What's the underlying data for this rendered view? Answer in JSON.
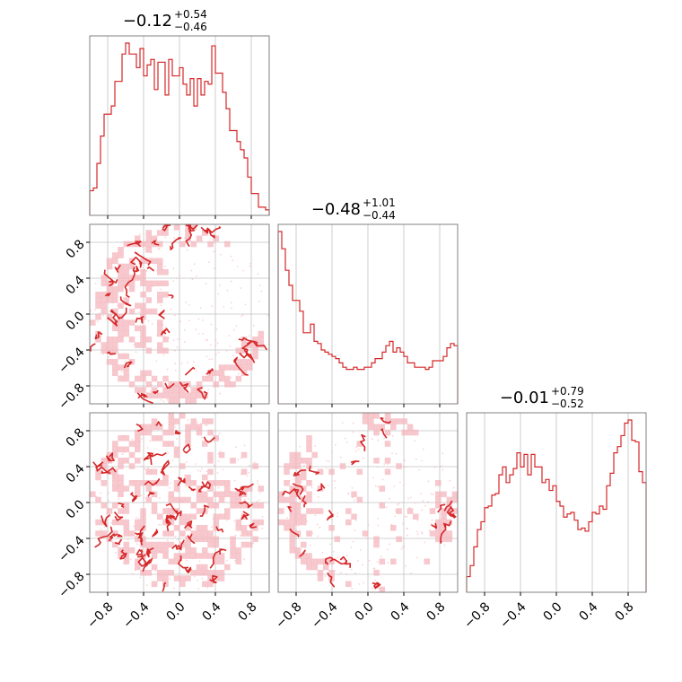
{
  "colors": {
    "accent": "#d62728",
    "fill": "#f4b6bc",
    "grid": "#c0c0c0",
    "frame": "#808080"
  },
  "chart_data": {
    "type": "corner",
    "parameters": 3,
    "axis_range": [
      -1,
      1
    ],
    "tick_values": [
      -0.8,
      -0.4,
      0.0,
      0.4,
      0.8
    ],
    "tick_labels": [
      "−0.8",
      "−0.4",
      "0.0",
      "0.4",
      "0.8"
    ],
    "grid": true,
    "titles": [
      {
        "median": "−0.12",
        "plus": "+0.54",
        "minus": "−0.46"
      },
      {
        "median": "−0.48",
        "plus": "+1.01",
        "minus": "−0.44"
      },
      {
        "median": "−0.01",
        "plus": "+0.79",
        "minus": "−0.52"
      }
    ],
    "histograms": [
      {
        "bin_range": [
          -1,
          1
        ],
        "counts": [
          9,
          10,
          19,
          29,
          37,
          37,
          40,
          49,
          49,
          59,
          63,
          59,
          59,
          54,
          61,
          51,
          55,
          57,
          46,
          56,
          56,
          44,
          57,
          51,
          51,
          54,
          48,
          44,
          50,
          40,
          50,
          44,
          49,
          48,
          62,
          52,
          52,
          45,
          39,
          31,
          31,
          27,
          24,
          21,
          14,
          8,
          8,
          3,
          3,
          2
        ]
      },
      {
        "bin_range": [
          -1,
          1
        ],
        "counts": [
          80,
          72,
          62,
          55,
          48,
          48,
          43,
          33,
          33,
          37,
          29,
          28,
          25,
          24,
          23,
          22,
          21,
          19,
          17,
          16,
          16,
          17,
          16,
          16,
          17,
          17,
          19,
          21,
          21,
          24,
          27,
          29,
          24,
          26,
          24,
          22,
          19,
          19,
          17,
          17,
          17,
          16,
          17,
          20,
          20,
          20,
          22,
          26,
          28,
          27
        ]
      },
      {
        "bin_range": [
          -1,
          1
        ],
        "counts": [
          10,
          17,
          29,
          40,
          45,
          54,
          55,
          62,
          63,
          75,
          80,
          70,
          75,
          79,
          89,
          80,
          88,
          75,
          88,
          80,
          80,
          70,
          72,
          65,
          68,
          58,
          55,
          48,
          50,
          51,
          46,
          40,
          41,
          39,
          45,
          51,
          50,
          55,
          53,
          68,
          76,
          89,
          93,
          100,
          108,
          110,
          97,
          96,
          77,
          70
        ]
      }
    ],
    "panels_2d": [
      {
        "x_param": 1,
        "y_param": 2
      },
      {
        "x_param": 1,
        "y_param": 3
      },
      {
        "x_param": 2,
        "y_param": 3
      }
    ]
  }
}
